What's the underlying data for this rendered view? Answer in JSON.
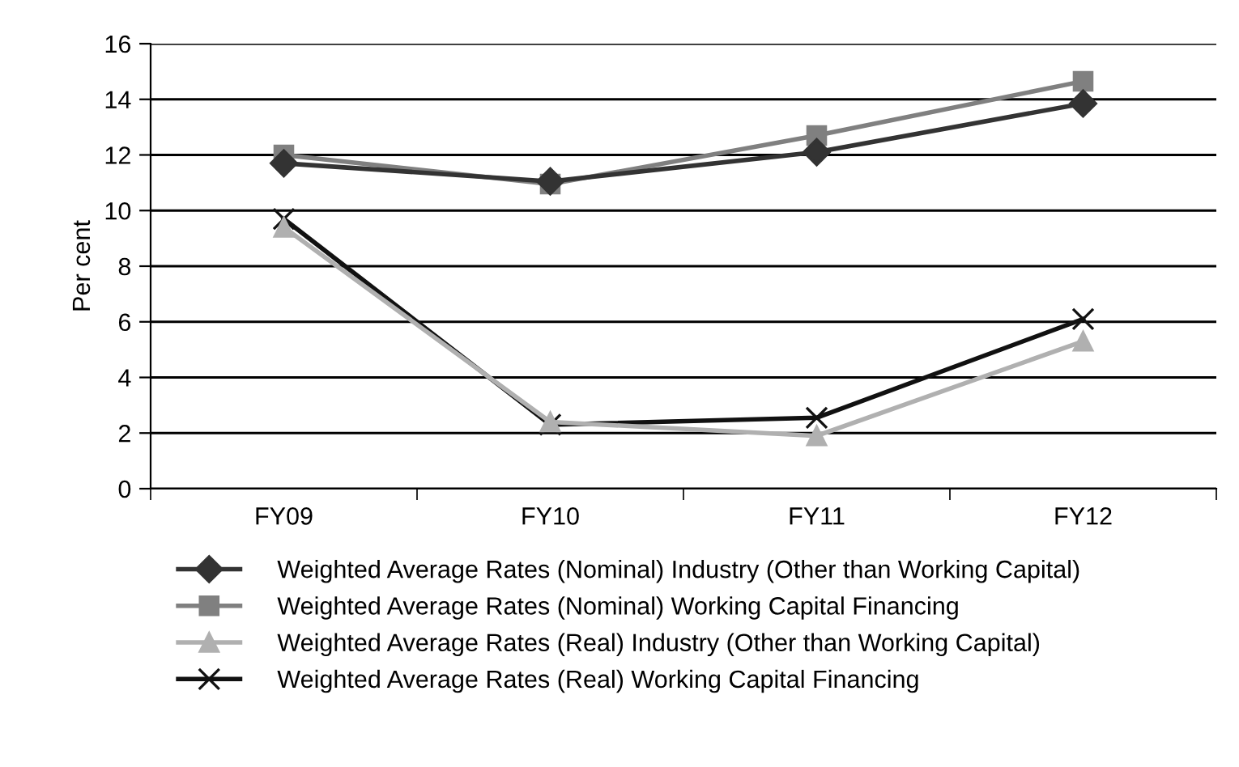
{
  "chart_data": {
    "type": "line",
    "ylabel": "Per cent",
    "categories": [
      "FY09",
      "FY10",
      "FY11",
      "FY12"
    ],
    "ylim": [
      0,
      16
    ],
    "yticks": [
      0,
      2,
      4,
      6,
      8,
      10,
      12,
      14,
      16
    ],
    "grid": "y",
    "legend": "bottom",
    "line_style": "solid",
    "series": [
      {
        "name": "Weighted Average Rates (Nominal) Industry (Other than Working Capital)",
        "color": "#333333",
        "marker": "diamond",
        "values": [
          11.7,
          11.05,
          12.1,
          13.85
        ]
      },
      {
        "name": "Weighted Average Rates (Nominal) Working Capital Financing",
        "color": "#808080",
        "marker": "square",
        "values": [
          12.0,
          10.95,
          12.7,
          14.65
        ]
      },
      {
        "name": "Weighted Average Rates (Real) Industry (Other than Working Capital)",
        "color": "#b0b0b0",
        "marker": "triangle",
        "values": [
          9.4,
          2.4,
          1.9,
          5.3
        ]
      },
      {
        "name": "Weighted Average Rates (Real) Working Capital Financing",
        "color": "#111111",
        "marker": "cross",
        "values": [
          9.7,
          2.3,
          2.55,
          6.1
        ]
      }
    ]
  }
}
